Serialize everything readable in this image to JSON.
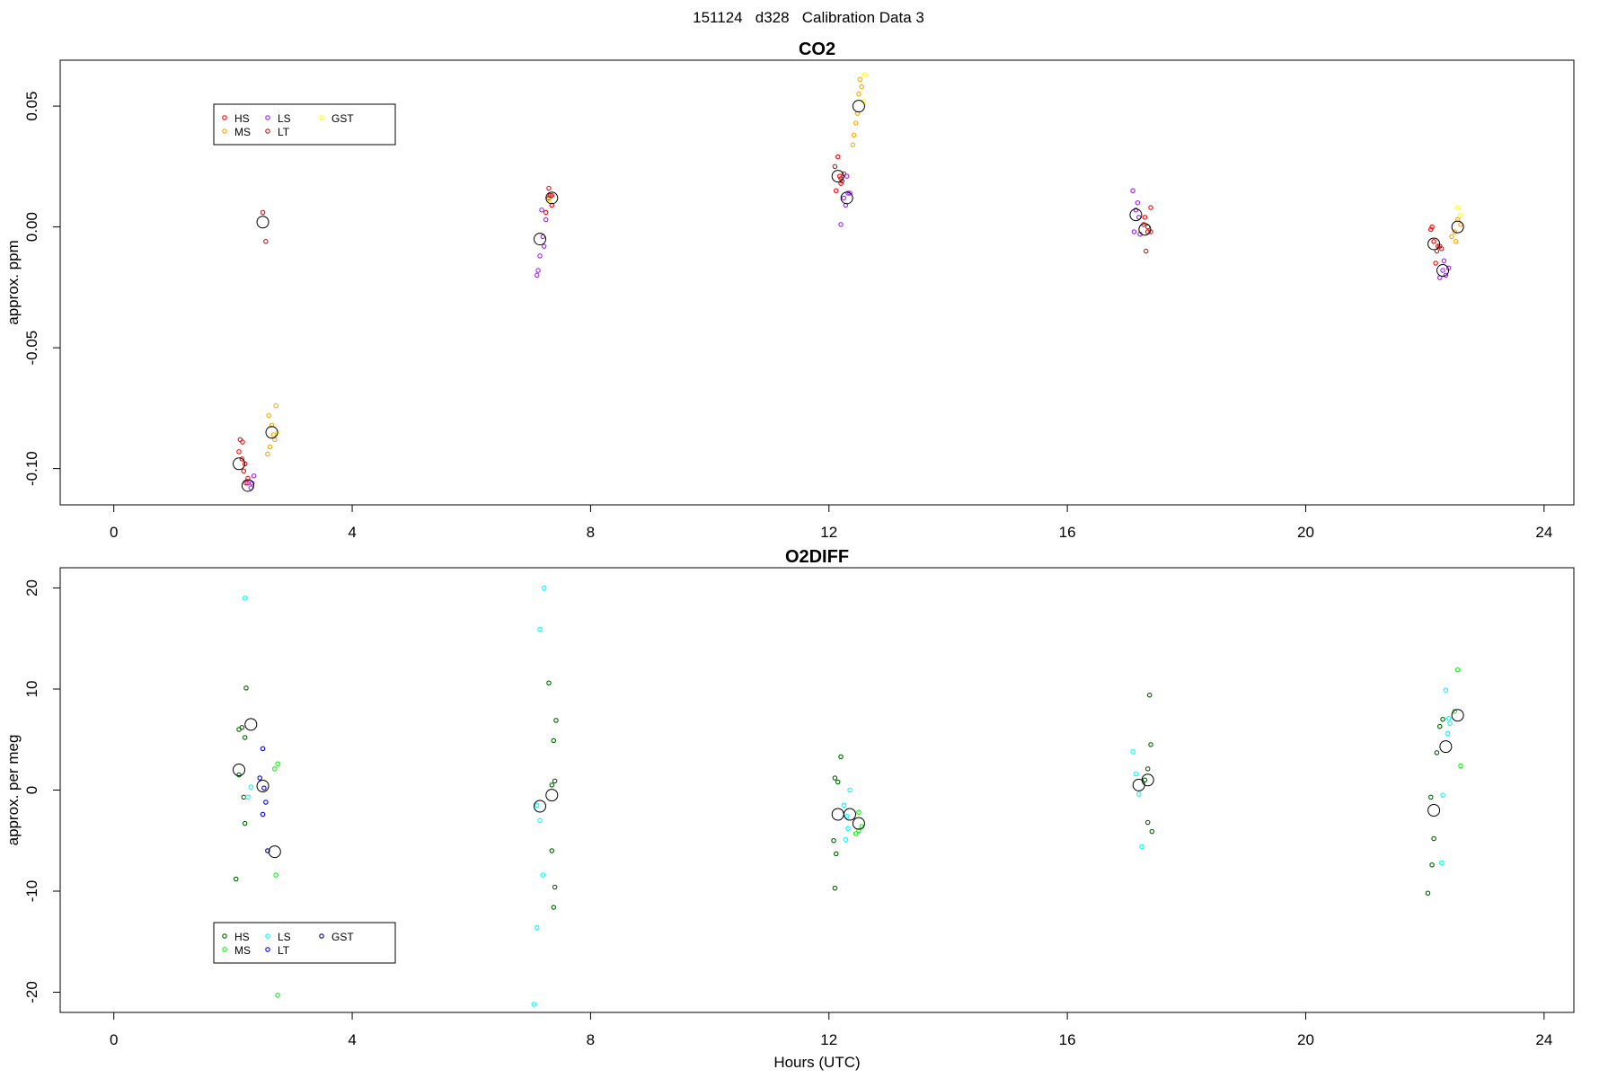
{
  "page_title": "151124   d328   Calibration Data 3",
  "chart_data": [
    {
      "type": "scatter",
      "title": "CO2",
      "xlabel": "",
      "ylabel": "approx. ppm",
      "xlim": [
        -0.9,
        24.5
      ],
      "ylim": [
        -0.115,
        0.069
      ],
      "x_ticks": [
        0,
        4,
        8,
        12,
        16,
        20,
        24
      ],
      "y_ticks": [
        -0.1,
        -0.05,
        0.0,
        0.05
      ],
      "y_tick_labels": [
        "-0.10",
        "-0.05",
        "0.00",
        "0.05"
      ],
      "legend_placement": "top-left",
      "legend_columns": 3,
      "series": [
        {
          "name": "HS",
          "color": "#ff0000",
          "points": [
            [
              2.1,
              -0.093
            ],
            [
              2.15,
              -0.096
            ],
            [
              2.2,
              -0.098
            ],
            [
              2.25,
              -0.104
            ],
            [
              2.18,
              -0.101
            ],
            [
              2.22,
              -0.106
            ],
            [
              2.12,
              -0.088
            ],
            [
              2.16,
              -0.089
            ],
            [
              7.3,
              0.016
            ],
            [
              7.35,
              0.009
            ],
            [
              7.25,
              0.006
            ],
            [
              7.32,
              0.013
            ],
            [
              12.1,
              0.025
            ],
            [
              12.15,
              0.029
            ],
            [
              12.2,
              0.018
            ],
            [
              12.18,
              0.021
            ],
            [
              12.12,
              0.015
            ],
            [
              12.22,
              0.019
            ],
            [
              17.3,
              0.004
            ],
            [
              17.35,
              -0.002
            ],
            [
              17.4,
              0.008
            ],
            [
              17.32,
              -0.01
            ],
            [
              17.28,
              0.001
            ],
            [
              22.1,
              -0.001
            ],
            [
              22.15,
              -0.006
            ],
            [
              22.2,
              -0.01
            ],
            [
              22.25,
              -0.008
            ],
            [
              22.12,
              0.0
            ],
            [
              22.18,
              -0.015
            ]
          ]
        },
        {
          "name": "MS",
          "color": "#ffa500",
          "points": [
            [
              2.6,
              -0.078
            ],
            [
              2.65,
              -0.082
            ],
            [
              2.7,
              -0.088
            ],
            [
              2.62,
              -0.091
            ],
            [
              2.58,
              -0.094
            ],
            [
              2.68,
              -0.086
            ],
            [
              2.72,
              -0.074
            ],
            [
              12.4,
              0.034
            ],
            [
              12.45,
              0.043
            ],
            [
              12.5,
              0.055
            ],
            [
              12.55,
              0.058
            ],
            [
              12.48,
              0.047
            ],
            [
              12.52,
              0.061
            ],
            [
              12.42,
              0.038
            ],
            [
              22.45,
              -0.004
            ],
            [
              22.5,
              -0.002
            ],
            [
              22.55,
              0.003
            ],
            [
              22.6,
              0.001
            ],
            [
              22.52,
              -0.006
            ]
          ]
        },
        {
          "name": "LS",
          "color": "#a020f0",
          "points": [
            [
              2.3,
              -0.108
            ],
            [
              2.35,
              -0.103
            ],
            [
              2.25,
              -0.106
            ],
            [
              2.32,
              -0.106
            ],
            [
              7.1,
              -0.02
            ],
            [
              7.15,
              -0.012
            ],
            [
              7.2,
              -0.004
            ],
            [
              7.25,
              0.003
            ],
            [
              7.18,
              0.007
            ],
            [
              7.12,
              -0.018
            ],
            [
              7.22,
              -0.008
            ],
            [
              12.3,
              0.021
            ],
            [
              12.25,
              0.012
            ],
            [
              12.35,
              0.014
            ],
            [
              12.2,
              0.001
            ],
            [
              12.28,
              0.009
            ],
            [
              12.32,
              0.014
            ],
            [
              17.1,
              0.015
            ],
            [
              17.15,
              0.007
            ],
            [
              17.2,
              0.004
            ],
            [
              17.12,
              -0.002
            ],
            [
              17.18,
              0.01
            ],
            [
              17.22,
              -0.003
            ],
            [
              22.3,
              -0.018
            ],
            [
              22.35,
              -0.02
            ],
            [
              22.25,
              -0.021
            ],
            [
              22.32,
              -0.014
            ],
            [
              22.4,
              -0.017
            ]
          ]
        },
        {
          "name": "LT",
          "color": "#b22222",
          "points": [
            [
              2.5,
              0.006
            ],
            [
              2.55,
              -0.006
            ],
            [
              7.35,
              0.013
            ],
            [
              7.3,
              0.012
            ],
            [
              12.2,
              0.02
            ],
            [
              12.25,
              0.022
            ],
            [
              17.35,
              0.0
            ],
            [
              17.4,
              -0.002
            ],
            [
              22.28,
              -0.009
            ],
            [
              22.22,
              -0.008
            ]
          ]
        },
        {
          "name": "GST",
          "color": "#ffff00",
          "points": [
            [
              2.75,
              -0.085
            ],
            [
              7.3,
              0.011
            ],
            [
              12.6,
              0.063
            ],
            [
              12.58,
              0.052
            ],
            [
              22.55,
              0.008
            ],
            [
              22.6,
              0.005
            ]
          ]
        }
      ],
      "means": [
        [
          2.1,
          -0.098
        ],
        [
          2.25,
          -0.107
        ],
        [
          2.5,
          0.002
        ],
        [
          2.65,
          -0.085
        ],
        [
          7.15,
          -0.005
        ],
        [
          7.35,
          0.012
        ],
        [
          12.15,
          0.021
        ],
        [
          12.3,
          0.012
        ],
        [
          12.5,
          0.05
        ],
        [
          17.15,
          0.005
        ],
        [
          17.3,
          -0.001
        ],
        [
          22.15,
          -0.007
        ],
        [
          22.3,
          -0.018
        ],
        [
          22.55,
          0.0
        ]
      ]
    },
    {
      "type": "scatter",
      "title": "O2DIFF",
      "xlabel": "Hours (UTC)",
      "ylabel": "approx. per meg",
      "xlim": [
        -0.9,
        24.5
      ],
      "ylim": [
        -22,
        22
      ],
      "x_ticks": [
        0,
        4,
        8,
        12,
        16,
        20,
        24
      ],
      "y_ticks": [
        -20,
        -10,
        0,
        10,
        20
      ],
      "y_tick_labels": [
        "-20",
        "-10",
        "0",
        "10",
        "20"
      ],
      "legend_placement": "bottom-left",
      "legend_columns": 3,
      "series": [
        {
          "name": "HS",
          "color": "#006400",
          "points": [
            [
              2.1,
              6.0
            ],
            [
              2.15,
              6.2
            ],
            [
              2.2,
              5.2
            ],
            [
              2.1,
              1.5
            ],
            [
              2.18,
              -0.7
            ],
            [
              2.2,
              -3.3
            ],
            [
              2.05,
              -8.8
            ],
            [
              2.22,
              10.1
            ],
            [
              7.3,
              10.6
            ],
            [
              7.35,
              0.5
            ],
            [
              7.4,
              0.9
            ],
            [
              7.38,
              4.9
            ],
            [
              7.42,
              6.9
            ],
            [
              7.35,
              -6.0
            ],
            [
              7.4,
              -9.6
            ],
            [
              7.38,
              -11.6
            ],
            [
              12.1,
              1.2
            ],
            [
              12.15,
              0.8
            ],
            [
              12.2,
              3.3
            ],
            [
              12.08,
              -5.0
            ],
            [
              12.12,
              -6.3
            ],
            [
              12.1,
              -9.7
            ],
            [
              17.3,
              1.0
            ],
            [
              17.35,
              2.1
            ],
            [
              17.4,
              4.5
            ],
            [
              17.38,
              9.4
            ],
            [
              17.35,
              -3.2
            ],
            [
              17.42,
              -4.1
            ],
            [
              22.1,
              -0.7
            ],
            [
              22.15,
              -4.8
            ],
            [
              22.12,
              -7.4
            ],
            [
              22.05,
              -10.2
            ],
            [
              22.2,
              3.7
            ],
            [
              22.25,
              6.3
            ],
            [
              22.3,
              7.0
            ]
          ]
        },
        {
          "name": "MS",
          "color": "#00ff00",
          "points": [
            [
              2.7,
              2.1
            ],
            [
              2.75,
              2.6
            ],
            [
              2.72,
              -8.4
            ],
            [
              2.75,
              -20.3
            ],
            [
              12.5,
              -2.2
            ],
            [
              12.55,
              -3.6
            ],
            [
              12.45,
              -4.3
            ],
            [
              12.5,
              -4.0
            ],
            [
              22.55,
              11.9
            ],
            [
              22.6,
              2.4
            ],
            [
              22.5,
              7.8
            ]
          ]
        },
        {
          "name": "LS",
          "color": "#00ffff",
          "points": [
            [
              2.2,
              19.0
            ],
            [
              2.3,
              0.3
            ],
            [
              2.25,
              -0.7
            ],
            [
              7.1,
              -1.5
            ],
            [
              7.15,
              -3.0
            ],
            [
              7.2,
              -8.4
            ],
            [
              7.1,
              -13.6
            ],
            [
              7.05,
              -21.2
            ],
            [
              7.15,
              15.9
            ],
            [
              7.22,
              20.0
            ],
            [
              12.25,
              -1.5
            ],
            [
              12.3,
              -2.6
            ],
            [
              12.35,
              0.0
            ],
            [
              12.28,
              -4.9
            ],
            [
              12.32,
              -3.8
            ],
            [
              17.1,
              3.8
            ],
            [
              17.15,
              1.6
            ],
            [
              17.2,
              -0.4
            ],
            [
              17.25,
              -5.6
            ],
            [
              22.35,
              9.9
            ],
            [
              22.4,
              7.1
            ],
            [
              22.38,
              5.6
            ],
            [
              22.42,
              6.6
            ],
            [
              22.3,
              -0.5
            ],
            [
              22.28,
              -7.2
            ]
          ]
        },
        {
          "name": "LT",
          "color": "#0000ff",
          "points": [
            [
              2.5,
              4.1
            ],
            [
              2.45,
              1.2
            ],
            [
              2.52,
              0.2
            ],
            [
              2.55,
              -1.2
            ],
            [
              2.5,
              -2.4
            ]
          ]
        },
        {
          "name": "GST",
          "color": "#00008b",
          "points": [
            [
              2.58,
              -6.0
            ]
          ]
        }
      ],
      "means": [
        [
          2.1,
          2.0
        ],
        [
          2.3,
          6.5
        ],
        [
          2.5,
          0.4
        ],
        [
          2.7,
          -6.1
        ],
        [
          7.15,
          -1.6
        ],
        [
          7.35,
          -0.5
        ],
        [
          12.15,
          -2.4
        ],
        [
          12.35,
          -2.4
        ],
        [
          12.5,
          -3.3
        ],
        [
          17.2,
          0.5
        ],
        [
          17.35,
          1.0
        ],
        [
          22.15,
          -2.0
        ],
        [
          22.35,
          4.3
        ],
        [
          22.55,
          7.4
        ]
      ]
    }
  ]
}
